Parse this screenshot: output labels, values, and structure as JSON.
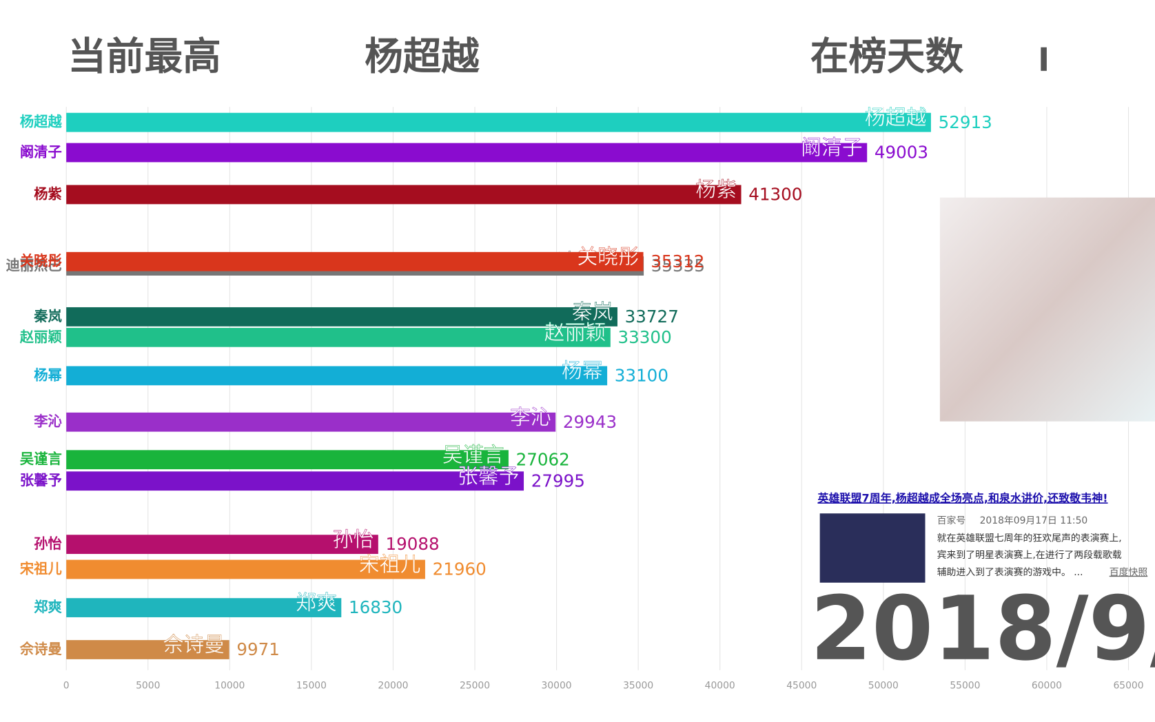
{
  "chart_data": {
    "type": "bar",
    "orientation": "horizontal",
    "title": "当前最高",
    "leader": "杨超越",
    "days_label": "在榜天数",
    "date_label": "2018/9/",
    "categories": [
      "杨超越",
      "阚清子",
      "杨紫",
      "关晓彤",
      "迪丽热巴",
      "秦岚",
      "赵丽颖",
      "杨幂",
      "李沁",
      "吴谨言",
      "张馨予",
      "孙怡",
      "宋祖儿",
      "郑爽",
      "佘诗曼"
    ],
    "values": [
      52913,
      49003,
      41300,
      35312,
      35335,
      33727,
      33300,
      33100,
      29943,
      27062,
      27995,
      19088,
      21960,
      16830,
      9971
    ],
    "colors": [
      "#1ecfbf",
      "#8a0ccf",
      "#a50d1f",
      "#d9361c",
      "#777777",
      "#116b5a",
      "#20c08a",
      "#13aed6",
      "#9a2fc9",
      "#19b43c",
      "#7b12c9",
      "#b5106d",
      "#f08c30",
      "#1fb5bd",
      "#cf8a48"
    ],
    "xlim": [
      0,
      65000
    ],
    "xticks": [
      0,
      5000,
      10000,
      15000,
      20000,
      25000,
      30000,
      35000,
      40000,
      45000,
      50000,
      55000,
      60000,
      65000
    ],
    "grid": true
  },
  "news": {
    "title": "英雄联盟7周年,杨超越成全场亮点,和泉水讲价,还致敬韦神!",
    "source": "百家号",
    "time": "2018年09月17日 11:50",
    "lines": [
      "就在英雄联盟七周年的狂欢尾声的表演赛上,",
      "宾来到了明星表演赛上,在进行了两段载歌载",
      "辅助进入到了表演赛的游戏中。 ..."
    ],
    "snapshot": "百度快照"
  }
}
